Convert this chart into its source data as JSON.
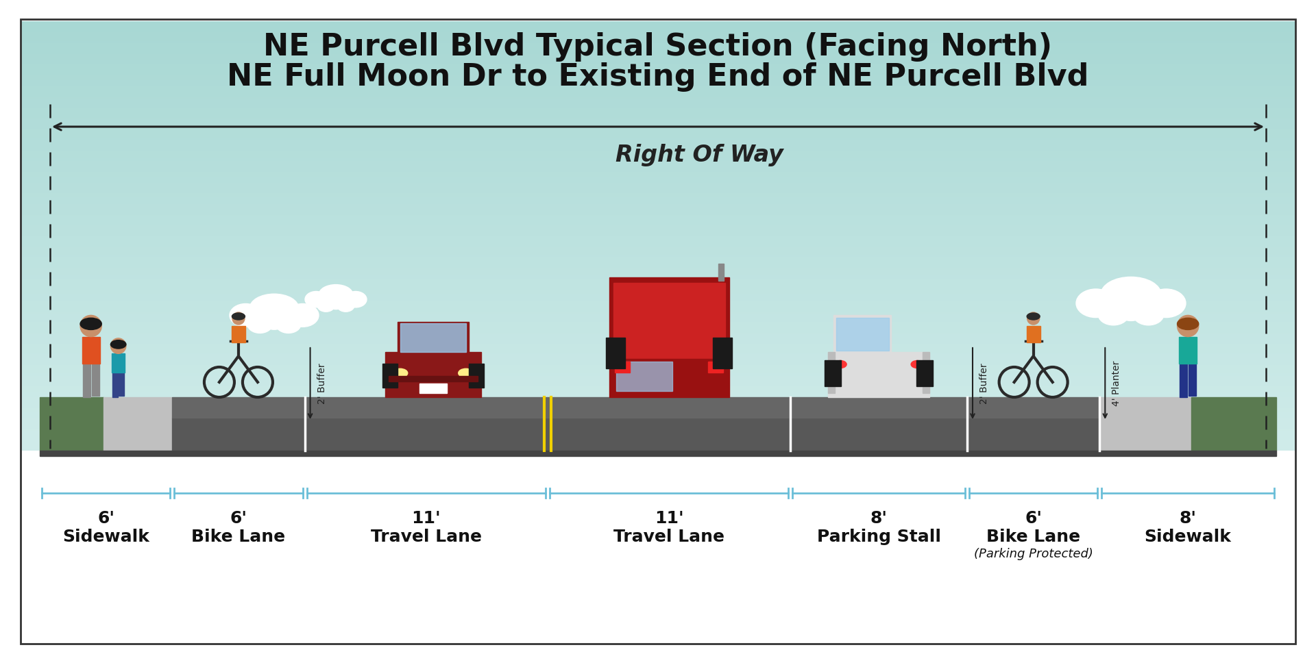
{
  "title_line1": "NE Purcell Blvd Typical Section (Facing North)",
  "title_line2": "NE Full Moon Dr to Existing End of NE Purcell Blvd",
  "right_of_way_label": "Right Of Way",
  "sky_top_color": "#a8d8d4",
  "sky_bottom_color": "#c8e8e5",
  "road_color": "#585858",
  "sidewalk_concrete_color": "#c0c0c0",
  "grass_green_color": "#5a7a50",
  "grass_dark_color": "#4a6a42",
  "lane_line_white": "#ffffff",
  "lane_line_yellow": "#f0d000",
  "dimension_line_color": "#6bbfd8",
  "border_color": "#333333",
  "seg_ft": [
    6,
    6,
    11,
    11,
    8,
    6,
    8
  ],
  "dim_labels": [
    "6'",
    "6'",
    "11'",
    "11'",
    "8'",
    "6'",
    "8'"
  ],
  "dim_names": [
    "Sidewalk",
    "Bike Lane",
    "Travel Lane",
    "Travel Lane",
    "Parking Stall",
    "Bike Lane",
    "Sidewalk"
  ],
  "dim_subnames": [
    "",
    "",
    "",
    "",
    "",
    "(Parking Protected)",
    ""
  ],
  "buffer_annotations": [
    "2' Buffer",
    "2' Buffer",
    "4' Planter"
  ],
  "fig_w": 19.2,
  "fig_h": 9.55,
  "dpi": 100
}
